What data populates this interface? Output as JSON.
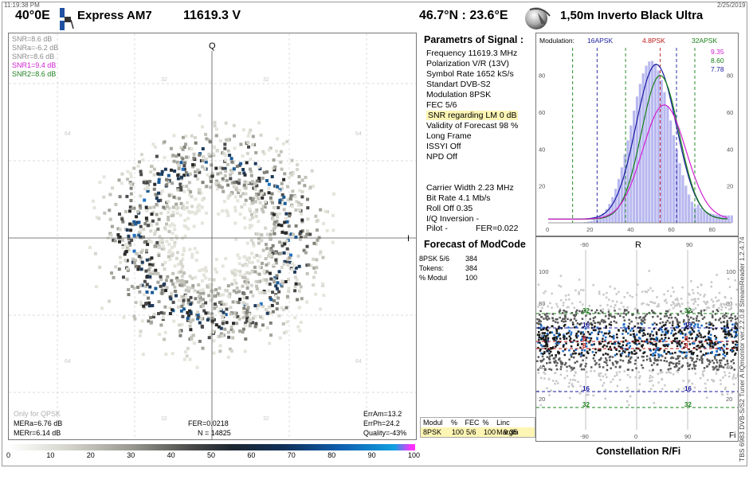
{
  "header": {
    "time": "11:19:38 PM",
    "date": "2/25/2019",
    "sat_position": "40°0E",
    "sat_name": "Express AM7",
    "frequency": "11619.3  V",
    "location": "46.7°N : 23.6°E",
    "dish": "1,50m  Inverto Black Ultra"
  },
  "constellation": {
    "axis_q": "Q",
    "axis_i": "I",
    "grid_labels": [
      "32",
      "64"
    ],
    "snr_lines": [
      {
        "text": "SNR=8.6 dB",
        "color": "#8c8c8c"
      },
      {
        "text": "SNRa=-6.2 dB",
        "color": "#8c8c8c"
      },
      {
        "text": "SNRr=8.6 dB",
        "color": "#8c8c8c"
      },
      {
        "text": "SNR1=9.4 dB",
        "color": "#d020d0"
      },
      {
        "text": "SNR2=8.6 dB",
        "color": "#208020"
      }
    ],
    "only_qpsk": "Only for QPSK",
    "mera": "MERa=6.76 dB",
    "merr": "MERr=6.14 dB",
    "fer": "FER=0.0218",
    "n": "N = 14825",
    "err_am": "ErrAm=13.2",
    "err_ph": "ErrPh=24.2",
    "quality": "Quality=-43%"
  },
  "color_scale": {
    "labels": [
      "0",
      "10",
      "20",
      "30",
      "40",
      "50",
      "60",
      "70",
      "80",
      "90",
      "100"
    ]
  },
  "params": {
    "title": "Parametrs of Signal :",
    "lines": [
      "Frequency  11619.3 MHz",
      "Polarization  V/R (13V)",
      "Symbol Rate  1652 kS/s",
      "Standart  DVB-S2",
      "Modulation  8PSK",
      "FEC  5/6",
      "SNR regarding LM  0 dB",
      "Validity of Forecast  98 %",
      "Long  Frame",
      "ISSYI  Off",
      "NPD   Off"
    ],
    "lines2": [
      "Carrier Width   2.23 MHz",
      "Bit Rate   4.1 Mb/s",
      "Roll Off   0.35",
      "I/Q Inversion    -"
    ],
    "pilot": "Pilot    -",
    "fer": "FER=0.022"
  },
  "forecast": {
    "title": "Forecast of ModCode",
    "rows": [
      {
        "k": "8PSK 5/6",
        "v": "384"
      },
      {
        "k": "Tokens:",
        "v": "384"
      },
      {
        "k": "% Modul",
        "v": "100"
      }
    ]
  },
  "modcode_table": {
    "headers": [
      "Modul",
      "%",
      "FEC",
      "%",
      "Linc Margin"
    ],
    "values": [
      "8PSK",
      "100",
      "5/6",
      "100",
      "9.35"
    ]
  },
  "histogram": {
    "modulation_label": "Modulation:",
    "mod_labels": [
      {
        "text": "16APSK",
        "color": "#1a1aa0"
      },
      {
        "text": "4.8PSK",
        "color": "#c01818"
      },
      {
        "text": "32APSK",
        "color": "#188018"
      }
    ],
    "values": [
      {
        "text": "9.35",
        "color": "#d020d0"
      },
      {
        "text": "8.60",
        "color": "#188018"
      },
      {
        "text": "7.78",
        "color": "#1a1aa0"
      }
    ],
    "y_ticks": [
      "80",
      "60",
      "40",
      "20"
    ],
    "x_ticks": [
      "0",
      "20",
      "40",
      "60",
      "80"
    ]
  },
  "polar": {
    "top_label": "R",
    "top_ticks": [
      "-90",
      "90"
    ],
    "bottom_ticks": [
      "-90",
      "0",
      "90"
    ],
    "right_label": "Fi",
    "y_ticks": [
      "100",
      "80",
      "60",
      "40",
      "20"
    ],
    "line_labels": [
      {
        "text": "32",
        "color": "#188018"
      },
      {
        "text": "16",
        "color": "#1a1aa0"
      },
      {
        "text": "8",
        "color": "#c01818"
      },
      {
        "text": "8",
        "color": "#c01818"
      },
      {
        "text": "16",
        "color": "#1a1aa0"
      },
      {
        "text": "32",
        "color": "#188018"
      }
    ],
    "caption": "Constellation  R/Fi"
  },
  "vertical_text": "TBS 6983 DVB-S/S2 Tuner A    IQmonitor  ver.2.2.0.8    StreamReader 1.2.4.74"
}
